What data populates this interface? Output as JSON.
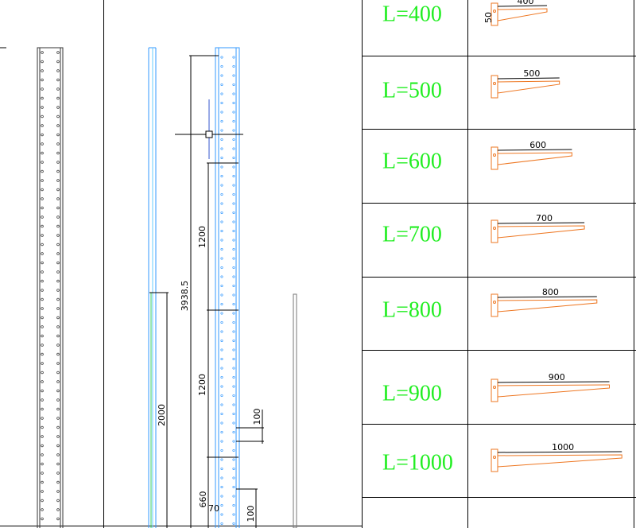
{
  "drawing": {
    "dimensions": [
      "3938.5",
      "1200",
      "1200",
      "2000",
      "100",
      "660",
      "70",
      "100"
    ]
  },
  "table": {
    "rows": [
      {
        "label": "L=400",
        "dimension": "400",
        "height": "50"
      },
      {
        "label": "L=500",
        "dimension": "500"
      },
      {
        "label": "L=600",
        "dimension": "600"
      },
      {
        "label": "L=700",
        "dimension": "700"
      },
      {
        "label": "L=800",
        "dimension": "800"
      },
      {
        "label": "L=900",
        "dimension": "900"
      },
      {
        "label": "L=1000",
        "dimension": "1000"
      }
    ]
  }
}
